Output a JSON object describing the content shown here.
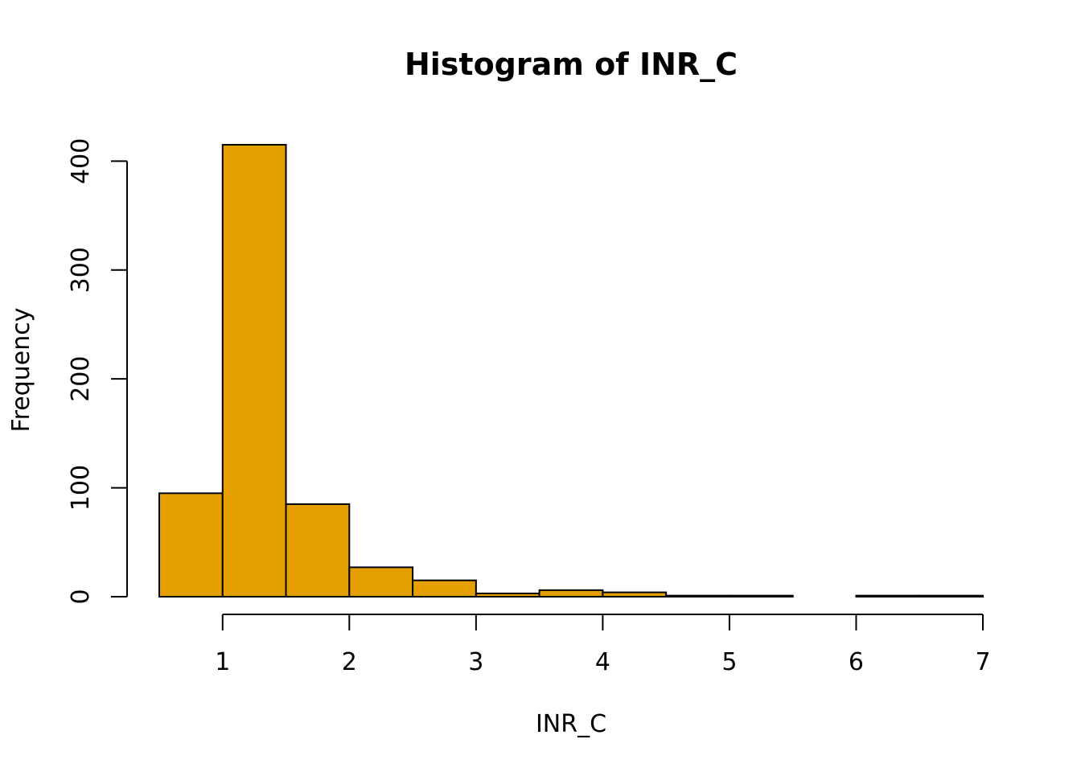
{
  "chart_data": {
    "type": "bar",
    "title": "Histogram of INR_C",
    "xlabel": "INR_C",
    "ylabel": "Frequency",
    "bar_color": "#E69F00",
    "bin_edges": [
      0.5,
      1.0,
      1.5,
      2.0,
      2.5,
      3.0,
      3.5,
      4.0,
      4.5,
      5.0,
      5.5,
      6.0,
      6.5,
      7.0
    ],
    "values": [
      95,
      415,
      85,
      27,
      15,
      3,
      6,
      4,
      1,
      1,
      0,
      1,
      1
    ],
    "xlim": [
      0.5,
      7.0
    ],
    "ylim": [
      0,
      415
    ],
    "xticks": [
      1,
      2,
      3,
      4,
      5,
      6,
      7
    ],
    "yticks": [
      0,
      100,
      200,
      300,
      400
    ],
    "grid": false,
    "legend": "none"
  }
}
